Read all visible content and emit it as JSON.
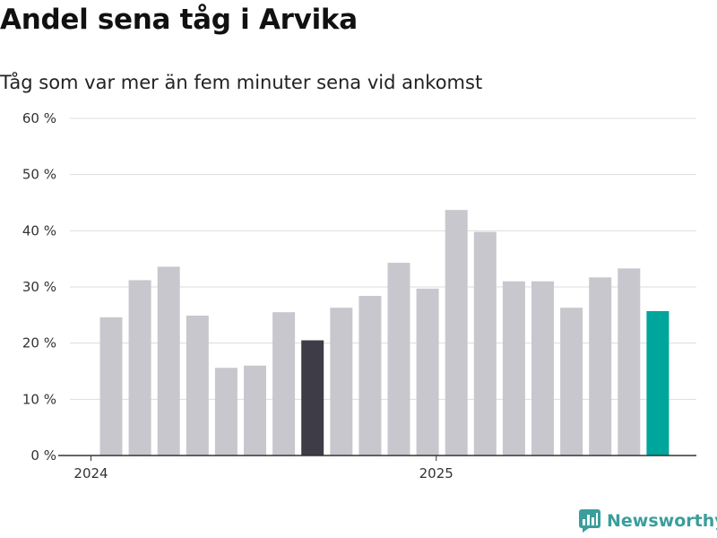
{
  "colors": {
    "bar_default": "#c8c7cd",
    "bar_highlight": "#3d3c47",
    "bar_latest": "#00a59b",
    "grid": "#dddddd",
    "axis": "#333333",
    "brand": "#3a9e9c"
  },
  "brand": {
    "name": "Newsworthy",
    "icon": "newsworthy-logo-icon"
  },
  "chart_data": {
    "type": "bar",
    "title": "Andel sena tåg i Arvika",
    "subtitle": "Tåg som var mer än fem minuter sena vid ankomst",
    "xlabel": "",
    "ylabel": "",
    "ylim": [
      0,
      60
    ],
    "yticks": [
      0,
      10,
      20,
      30,
      40,
      50,
      60
    ],
    "ytick_labels": [
      "0 %",
      "10 %",
      "20 %",
      "30 %",
      "40 %",
      "50 %",
      "60 %"
    ],
    "grid": true,
    "categories": [
      "2024-01",
      "2024-02",
      "2024-03",
      "2024-04",
      "2024-05",
      "2024-06",
      "2024-07",
      "2024-08",
      "2024-09",
      "2024-10",
      "2024-11",
      "2024-12",
      "2025-01",
      "2025-02",
      "2025-03",
      "2025-04",
      "2025-05",
      "2025-06",
      "2025-07",
      "2025-08"
    ],
    "values": [
      24.6,
      31.2,
      33.6,
      24.9,
      15.6,
      16.0,
      25.5,
      20.5,
      26.3,
      28.4,
      34.3,
      29.7,
      43.7,
      39.8,
      31.0,
      31.0,
      26.3,
      31.7,
      33.3,
      25.7
    ],
    "bar_styles": [
      "default",
      "default",
      "default",
      "default",
      "default",
      "default",
      "default",
      "highlight",
      "default",
      "default",
      "default",
      "default",
      "default",
      "default",
      "default",
      "default",
      "default",
      "default",
      "default",
      "latest"
    ],
    "x_tick_labels": [
      {
        "label": "2024",
        "month_index": -0.7
      },
      {
        "label": "2025",
        "month_index": 11.3
      }
    ]
  }
}
